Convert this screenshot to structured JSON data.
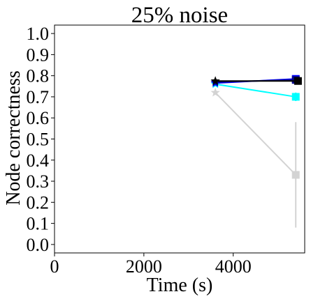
{
  "chart_data": {
    "type": "line",
    "title": "25% noise",
    "xlabel": "Time (s)",
    "ylabel": "Node correctness",
    "xlim": [
      0,
      5600
    ],
    "ylim": [
      -0.04,
      1.04
    ],
    "xticks": [
      0,
      2000,
      4000
    ],
    "yticks": [
      0.0,
      0.1,
      0.2,
      0.3,
      0.4,
      0.5,
      0.6,
      0.7,
      0.8,
      0.9,
      1.0
    ],
    "grid": false,
    "legend": "none",
    "series": [
      {
        "color": "#d3d3d3",
        "points": [
          {
            "x": 3600,
            "y": 0.72,
            "marker": "star"
          },
          {
            "x": 5400,
            "y": 0.33,
            "marker": "square",
            "err": 0.25
          }
        ]
      },
      {
        "color": "#00ffff",
        "points": [
          {
            "x": 3600,
            "y": 0.76,
            "marker": "star"
          },
          {
            "x": 5400,
            "y": 0.7,
            "marker": "square",
            "err": 0.02
          }
        ]
      },
      {
        "color": "#0000ff",
        "points": [
          {
            "x": 3600,
            "y": 0.765,
            "marker": "star"
          },
          {
            "x": 5400,
            "y": 0.785,
            "marker": "square",
            "err": 0.01
          }
        ]
      },
      {
        "color": "#00008b",
        "points": [
          {
            "x": 3600,
            "y": 0.77,
            "marker": "star"
          },
          {
            "x": 5400,
            "y": 0.78,
            "marker": "square",
            "err": 0.01
          }
        ]
      },
      {
        "color": "#000000",
        "points": [
          {
            "x": 3600,
            "y": 0.775,
            "marker": "star"
          },
          {
            "x": 5450,
            "y": 0.775,
            "marker": "square",
            "err": 0.01
          }
        ]
      }
    ]
  }
}
